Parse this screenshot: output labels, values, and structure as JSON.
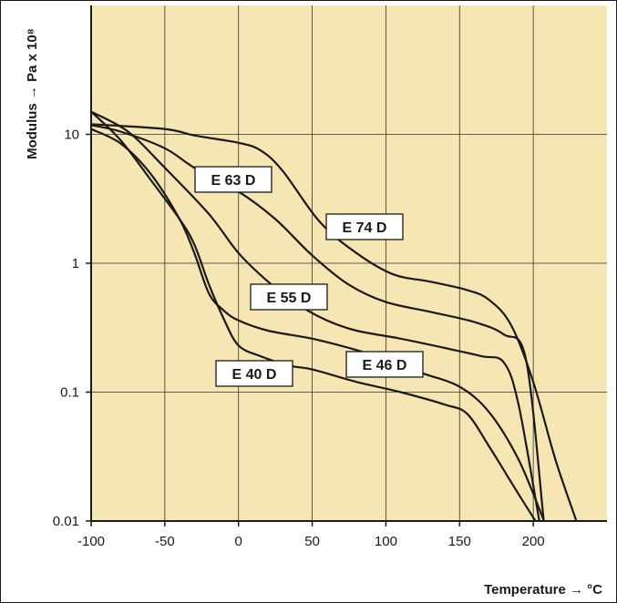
{
  "colors": {
    "plot_bg": "#f5e6b4",
    "frame": "#1a1a1a",
    "grid": "#333333",
    "curve": "#1a1a1a",
    "label_bg": "#ffffff"
  },
  "chart_data": {
    "type": "line",
    "xlabel": "Temperature → °C",
    "ylabel": "Modulus → Pa x 10⁸",
    "xlim": [
      -100,
      250
    ],
    "ylim": [
      0.01,
      100
    ],
    "yscale": "log",
    "grid": true,
    "x_ticks": [
      "-100",
      "-50",
      "0",
      "50",
      "100",
      "150",
      "200"
    ],
    "y_ticks": [
      "0.01",
      "0.1",
      "1",
      "10"
    ],
    "series": [
      {
        "name": "E 74 D",
        "x": [
          -100,
          -50,
          -30,
          0,
          15,
          30,
          55,
          80,
          105,
          130,
          155,
          170,
          185,
          200,
          215,
          229
        ],
        "y": [
          12,
          11,
          9.8,
          8.6,
          7.5,
          5.2,
          2.1,
          1.2,
          0.82,
          0.72,
          0.62,
          0.52,
          0.33,
          0.12,
          0.03,
          0.0102
        ]
      },
      {
        "name": "E 63 D",
        "x": [
          -100,
          -80,
          -50,
          -30,
          0,
          25,
          50,
          75,
          100,
          130,
          160,
          180,
          195,
          207
        ],
        "y": [
          11.8,
          10.5,
          7.8,
          5.5,
          3.6,
          2.2,
          1.15,
          0.68,
          0.5,
          0.42,
          0.35,
          0.28,
          0.18,
          0.0103
        ]
      },
      {
        "name": "E 55 D",
        "x": [
          -100,
          -75,
          -50,
          -20,
          0,
          20,
          40,
          60,
          80,
          110,
          140,
          165,
          180,
          190,
          204
        ],
        "y": [
          15,
          10.5,
          5.5,
          2.4,
          1.2,
          0.72,
          0.48,
          0.36,
          0.3,
          0.26,
          0.22,
          0.19,
          0.17,
          0.08,
          0.0102
        ]
      },
      {
        "name": "E 46 D",
        "x": [
          -100,
          -80,
          -60,
          -40,
          -30,
          -20,
          -10,
          0,
          20,
          50,
          75,
          100,
          125,
          150,
          170,
          190,
          207
        ],
        "y": [
          11,
          8.5,
          5,
          2.2,
          1.2,
          0.58,
          0.43,
          0.36,
          0.3,
          0.26,
          0.22,
          0.18,
          0.14,
          0.11,
          0.07,
          0.03,
          0.0102
        ]
      },
      {
        "name": "E 40 D",
        "x": [
          -100,
          -80,
          -60,
          -40,
          -30,
          -20,
          -10,
          0,
          15,
          35,
          50,
          80,
          110,
          140,
          155,
          170,
          185,
          201
        ],
        "y": [
          15,
          9,
          4.5,
          2.2,
          1.4,
          0.68,
          0.37,
          0.23,
          0.19,
          0.16,
          0.15,
          0.12,
          0.1,
          0.08,
          0.068,
          0.038,
          0.02,
          0.0102
        ]
      }
    ]
  }
}
